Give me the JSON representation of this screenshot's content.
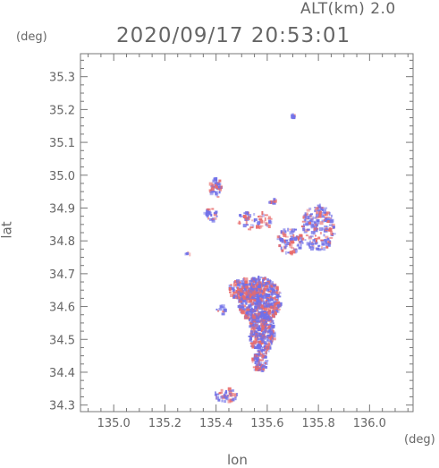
{
  "header": {
    "altitude": "ALT(km) 2.0",
    "timestamp": "2020/09/17 20:53:01"
  },
  "chart_data": {
    "type": "scatter",
    "xlabel": "lon",
    "ylabel": "lat",
    "x_unit": "(deg)",
    "y_unit": "(deg)",
    "xlim": [
      134.87,
      136.17
    ],
    "ylim": [
      34.28,
      35.37
    ],
    "x_ticks": [
      "135.0",
      "135.2",
      "135.4",
      "135.6",
      "135.8",
      "136.0"
    ],
    "y_ticks": [
      "34.3",
      "34.4",
      "34.5",
      "34.6",
      "34.7",
      "34.8",
      "34.9",
      "35.0",
      "35.1",
      "35.2",
      "35.3"
    ],
    "colors": {
      "positive": "#e86a6a",
      "negative": "#7070e8",
      "axis": "#777777"
    },
    "clusters": [
      {
        "lon": 135.57,
        "lat": 34.62,
        "rlon": 0.085,
        "rlat": 0.07,
        "n": 520
      },
      {
        "lon": 135.58,
        "lat": 34.52,
        "rlon": 0.05,
        "rlat": 0.065,
        "n": 320
      },
      {
        "lon": 135.52,
        "lat": 34.65,
        "rlon": 0.07,
        "rlat": 0.035,
        "n": 180
      },
      {
        "lon": 135.57,
        "lat": 34.43,
        "rlon": 0.03,
        "rlat": 0.03,
        "n": 70
      },
      {
        "lon": 135.8,
        "lat": 34.84,
        "rlon": 0.065,
        "rlat": 0.07,
        "n": 200
      },
      {
        "lon": 135.69,
        "lat": 34.8,
        "rlon": 0.05,
        "rlat": 0.04,
        "n": 90
      },
      {
        "lon": 135.55,
        "lat": 34.86,
        "rlon": 0.07,
        "rlat": 0.03,
        "n": 60
      },
      {
        "lon": 135.4,
        "lat": 34.96,
        "rlon": 0.025,
        "rlat": 0.03,
        "n": 45
      },
      {
        "lon": 135.38,
        "lat": 34.88,
        "rlon": 0.03,
        "rlat": 0.02,
        "n": 25
      },
      {
        "lon": 135.44,
        "lat": 34.33,
        "rlon": 0.045,
        "rlat": 0.02,
        "n": 45
      },
      {
        "lon": 135.7,
        "lat": 35.18,
        "rlon": 0.008,
        "rlat": 0.008,
        "n": 8
      },
      {
        "lon": 135.62,
        "lat": 34.92,
        "rlon": 0.012,
        "rlat": 0.01,
        "n": 10
      },
      {
        "lon": 135.29,
        "lat": 34.76,
        "rlon": 0.008,
        "rlat": 0.008,
        "n": 5
      },
      {
        "lon": 135.42,
        "lat": 34.59,
        "rlon": 0.02,
        "rlat": 0.015,
        "n": 12
      }
    ]
  }
}
